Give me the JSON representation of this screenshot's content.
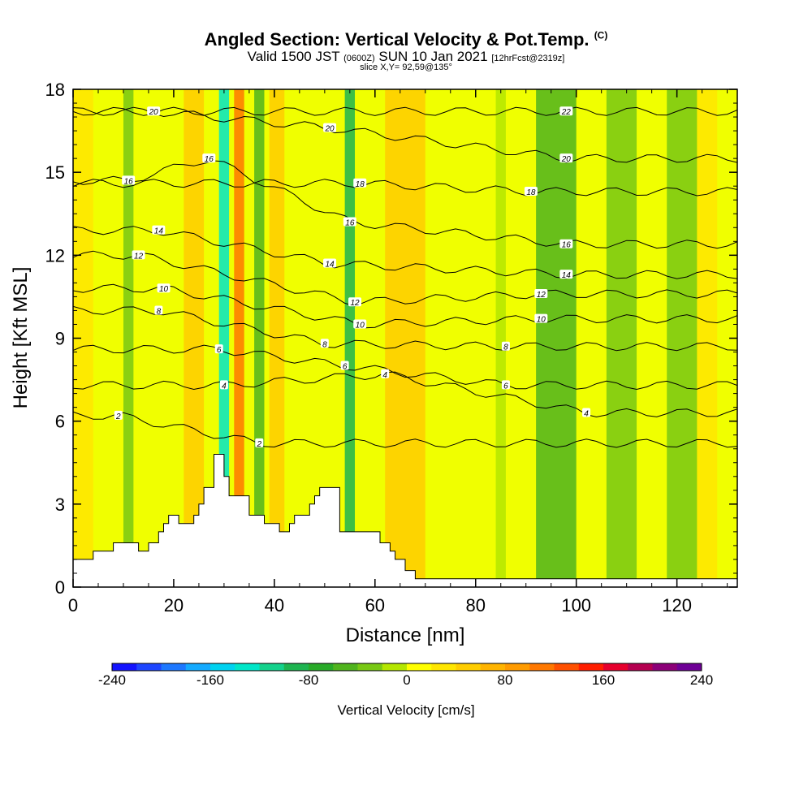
{
  "title": {
    "main": "Angled Section: Vertical Velocity & Pot.Temp.",
    "copyright": "(C)",
    "valid_a": "Valid 1500 JST",
    "valid_z": "(0600Z)",
    "valid_b": "SUN 10 Jan 2021",
    "fcst": "[12hrFcst@2319z]",
    "slice": "slice X,Y= 92,59@135°"
  },
  "chart_data": {
    "type": "heatmap",
    "xlabel": "Distance [nm]",
    "ylabel": "Height [Kft MSL]",
    "xlim": [
      0,
      132
    ],
    "ylim": [
      0,
      18
    ],
    "x_ticks": [
      0,
      20,
      40,
      60,
      80,
      100,
      120
    ],
    "y_ticks": [
      0,
      3,
      6,
      9,
      12,
      15,
      18
    ],
    "colorbar": {
      "label": "Vertical Velocity [cm/s]",
      "min": -240,
      "max": 240,
      "tick_labels": [
        "-240",
        "-160",
        "-80",
        "0",
        "80",
        "160",
        "240"
      ],
      "colors": [
        "#1414ff",
        "#1e46ff",
        "#1e78ff",
        "#14aaff",
        "#00d2f0",
        "#00e6c8",
        "#14d28c",
        "#1eb450",
        "#28aa28",
        "#50b41e",
        "#78c814",
        "#b4e600",
        "#ffff00",
        "#ffe600",
        "#ffcd00",
        "#ffb400",
        "#ff9b00",
        "#ff7800",
        "#ff5000",
        "#ff1e00",
        "#e6002d",
        "#b40050",
        "#8c0078",
        "#6e0096"
      ]
    },
    "terrain_profile": {
      "x": [
        0,
        4,
        4,
        8,
        8,
        13,
        13,
        15,
        15,
        17,
        17,
        18,
        18,
        19,
        19,
        21,
        21,
        24,
        24,
        25,
        25,
        26,
        26,
        28,
        28,
        30,
        30,
        31,
        31,
        32,
        32,
        35,
        35,
        38,
        38,
        41,
        41,
        43,
        43,
        44,
        44,
        47,
        47,
        48,
        48,
        49,
        49,
        50,
        50,
        53,
        53,
        55,
        55,
        61,
        61,
        63,
        63,
        64,
        64,
        66,
        66,
        68,
        68,
        72,
        72,
        132
      ],
      "y": [
        1.0,
        1.0,
        1.3,
        1.3,
        1.6,
        1.6,
        1.3,
        1.3,
        1.6,
        1.6,
        2.0,
        2.0,
        2.3,
        2.3,
        2.6,
        2.6,
        2.3,
        2.3,
        2.6,
        2.6,
        3.0,
        3.0,
        3.6,
        3.6,
        4.8,
        4.8,
        4.0,
        4.0,
        3.3,
        3.3,
        3.3,
        3.3,
        2.6,
        2.6,
        2.3,
        2.3,
        2.0,
        2.0,
        2.3,
        2.3,
        2.6,
        2.6,
        3.0,
        3.0,
        3.3,
        3.3,
        3.6,
        3.6,
        3.6,
        3.6,
        2.0,
        2.0,
        2.0,
        2.0,
        1.6,
        1.6,
        1.3,
        1.3,
        1.0,
        1.0,
        0.6,
        0.6,
        0.3,
        0.3,
        0.3,
        0.3
      ]
    },
    "velocity_bands": [
      {
        "x_low": 0,
        "x_high": 4,
        "velocity": 20
      },
      {
        "x_low": 10,
        "x_high": 12,
        "velocity": -30
      },
      {
        "x_low": 22,
        "x_high": 26,
        "velocity": 40
      },
      {
        "x_low": 29,
        "x_high": 31,
        "velocity": -140
      },
      {
        "x_low": 32,
        "x_high": 34,
        "velocity": 110
      },
      {
        "x_low": 36,
        "x_high": 38,
        "velocity": -60
      },
      {
        "x_low": 39,
        "x_high": 42,
        "velocity": 50
      },
      {
        "x_low": 54,
        "x_high": 56,
        "velocity": -90
      },
      {
        "x_low": 62,
        "x_high": 70,
        "velocity": 50
      },
      {
        "x_low": 84,
        "x_high": 86,
        "velocity": -20
      },
      {
        "x_low": 92,
        "x_high": 100,
        "velocity": -50
      },
      {
        "x_low": 106,
        "x_high": 112,
        "velocity": -40
      },
      {
        "x_low": 118,
        "x_high": 124,
        "velocity": -30
      },
      {
        "x_low": 124,
        "x_high": 128,
        "velocity": 30
      }
    ],
    "pot_temp_contour_labels": [
      {
        "label": "2",
        "x": 9,
        "y": 6.2
      },
      {
        "label": "2",
        "x": 37,
        "y": 5.2
      },
      {
        "label": "4",
        "x": 30,
        "y": 7.3
      },
      {
        "label": "4",
        "x": 62,
        "y": 7.7
      },
      {
        "label": "4",
        "x": 102,
        "y": 6.3
      },
      {
        "label": "6",
        "x": 29,
        "y": 8.6
      },
      {
        "label": "6",
        "x": 54,
        "y": 8.0
      },
      {
        "label": "6",
        "x": 86,
        "y": 7.3
      },
      {
        "label": "8",
        "x": 17,
        "y": 10.0
      },
      {
        "label": "8",
        "x": 50,
        "y": 8.8
      },
      {
        "label": "8",
        "x": 86,
        "y": 8.7
      },
      {
        "label": "10",
        "x": 18,
        "y": 10.8
      },
      {
        "label": "10",
        "x": 57,
        "y": 9.5
      },
      {
        "label": "10",
        "x": 93,
        "y": 9.7
      },
      {
        "label": "12",
        "x": 13,
        "y": 12.0
      },
      {
        "label": "12",
        "x": 56,
        "y": 10.3
      },
      {
        "label": "12",
        "x": 93,
        "y": 10.6
      },
      {
        "label": "14",
        "x": 17,
        "y": 12.9
      },
      {
        "label": "14",
        "x": 51,
        "y": 11.7
      },
      {
        "label": "14",
        "x": 98,
        "y": 11.3
      },
      {
        "label": "16",
        "x": 11,
        "y": 14.7
      },
      {
        "label": "16",
        "x": 27,
        "y": 15.5
      },
      {
        "label": "16",
        "x": 55,
        "y": 13.2
      },
      {
        "label": "16",
        "x": 98,
        "y": 12.4
      },
      {
        "label": "18",
        "x": 57,
        "y": 14.6
      },
      {
        "label": "18",
        "x": 91,
        "y": 14.3
      },
      {
        "label": "20",
        "x": 16,
        "y": 17.2
      },
      {
        "label": "20",
        "x": 51,
        "y": 16.6
      },
      {
        "label": "20",
        "x": 98,
        "y": 15.5
      },
      {
        "label": "22",
        "x": 98,
        "y": 17.2
      }
    ]
  }
}
